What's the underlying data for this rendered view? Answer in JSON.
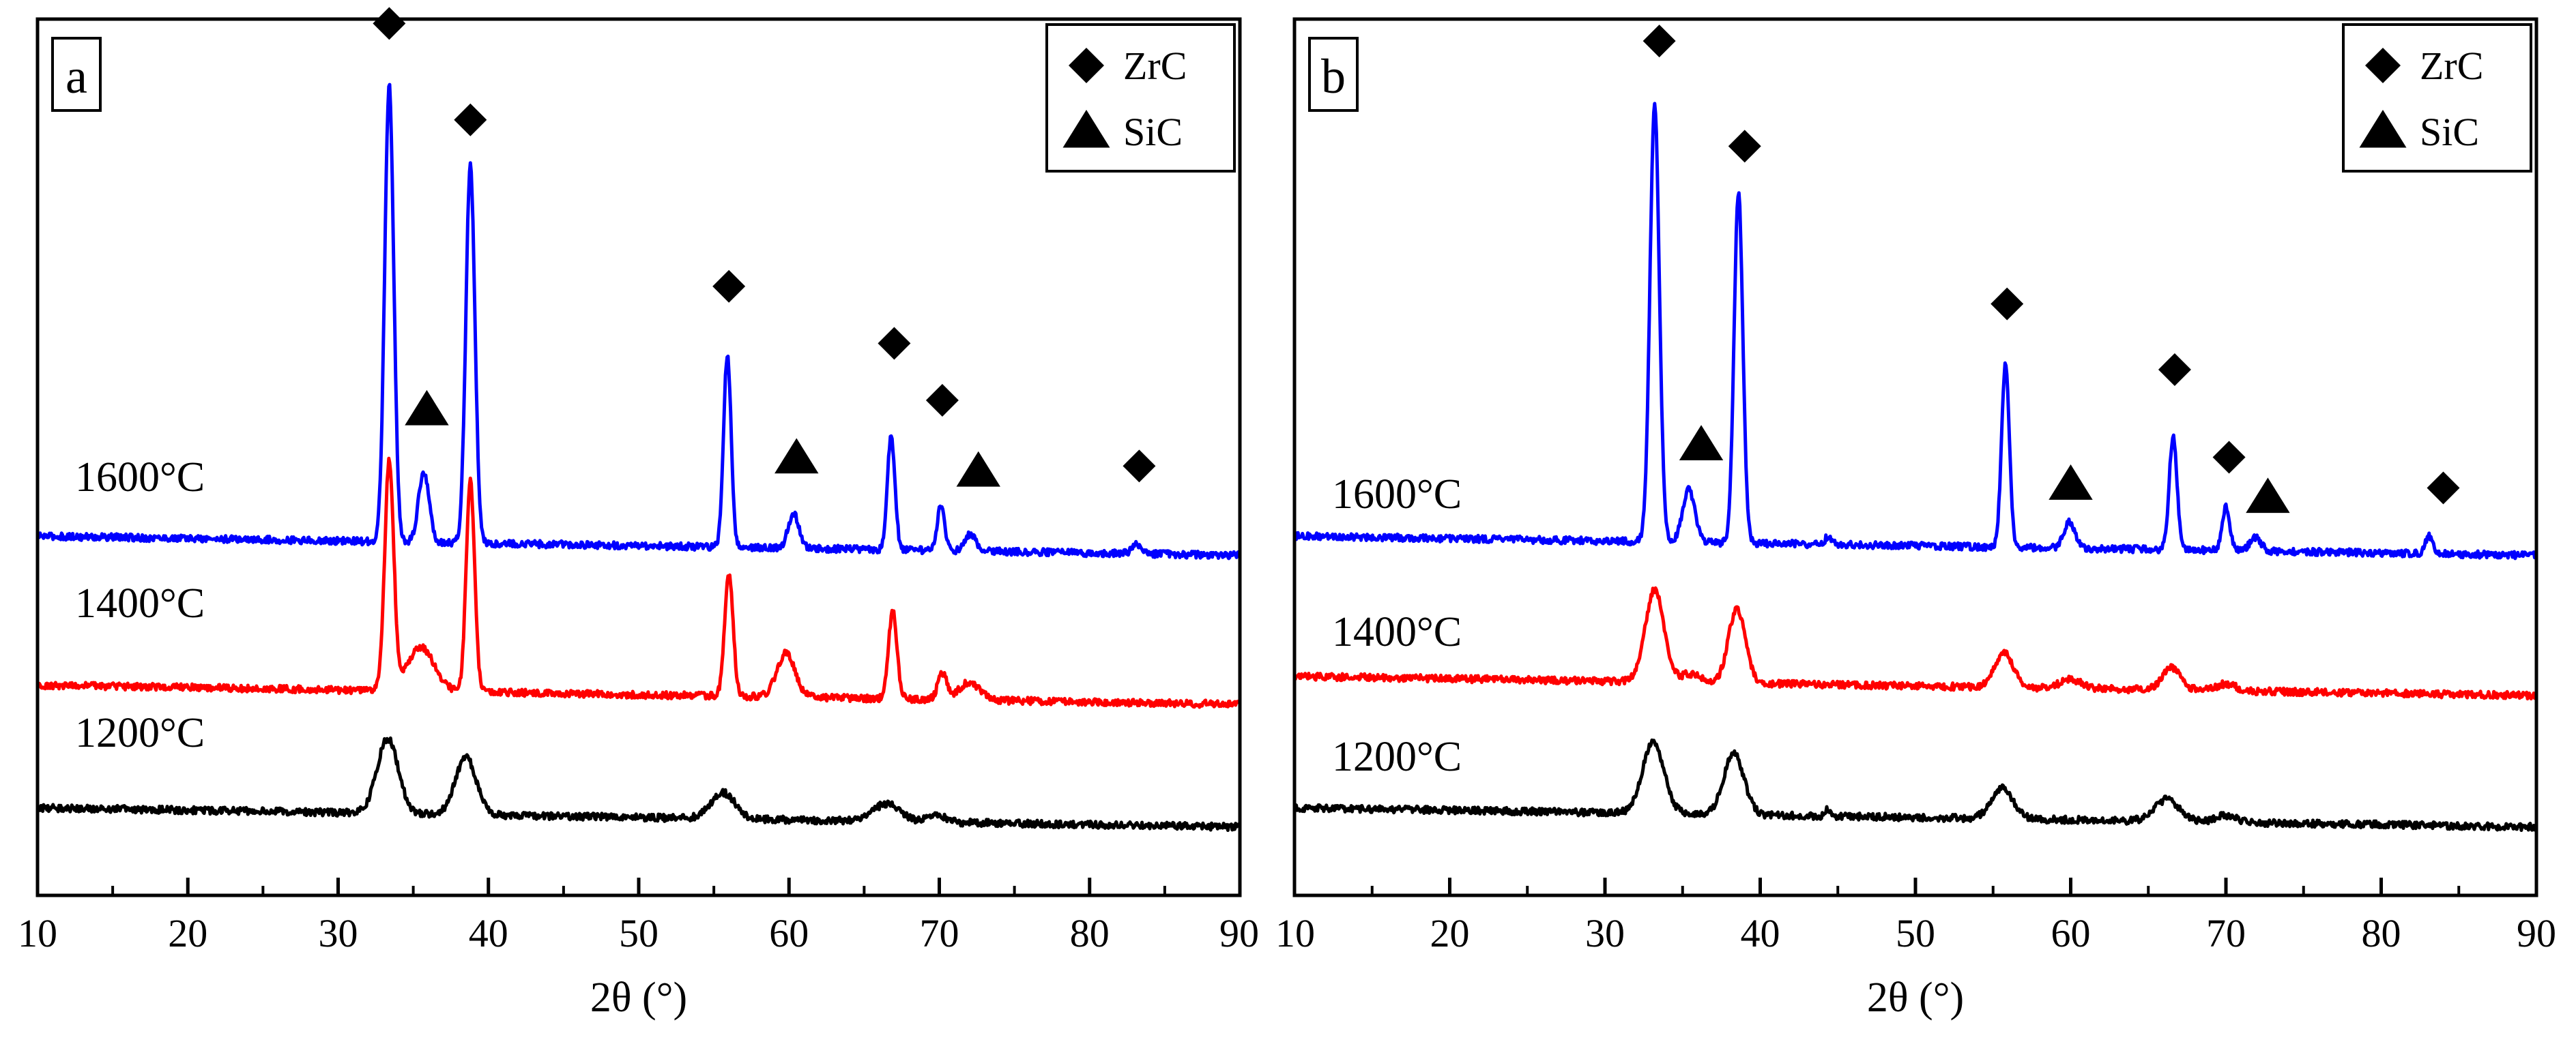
{
  "chart_data": [
    {
      "type": "line",
      "panel_label": "a",
      "title": "",
      "xlabel": "2θ (°)",
      "ylabel": "",
      "xlim": [
        10,
        90
      ],
      "xticks": [
        10,
        20,
        30,
        40,
        50,
        60,
        70,
        80,
        90
      ],
      "yticks": [],
      "legend": {
        "position": "top-right",
        "entries": [
          {
            "marker": "diamond",
            "label": "ZrC"
          },
          {
            "marker": "triangle",
            "label": "SiC"
          }
        ]
      },
      "series": [
        {
          "name": "1600°C",
          "label": "1600°C",
          "color": "#0000ff",
          "baseline": 0.41,
          "peaks": [
            {
              "x": 33.4,
              "h": 0.52,
              "w": 0.3
            },
            {
              "x": 35.7,
              "h": 0.08,
              "w": 0.35
            },
            {
              "x": 38.8,
              "h": 0.43,
              "w": 0.3
            },
            {
              "x": 55.9,
              "h": 0.22,
              "w": 0.25
            },
            {
              "x": 60.3,
              "h": 0.04,
              "w": 0.35
            },
            {
              "x": 66.8,
              "h": 0.13,
              "w": 0.25
            },
            {
              "x": 70.1,
              "h": 0.05,
              "w": 0.25
            },
            {
              "x": 72.1,
              "h": 0.02,
              "w": 0.35
            },
            {
              "x": 83.1,
              "h": 0.01,
              "w": 0.3
            }
          ]
        },
        {
          "name": "1400°C",
          "label": "1400°C",
          "color": "#ff0000",
          "baseline": 0.24,
          "peaks": [
            {
              "x": 33.4,
              "h": 0.26,
              "w": 0.3
            },
            {
              "x": 35.5,
              "h": 0.05,
              "w": 0.9
            },
            {
              "x": 38.8,
              "h": 0.24,
              "w": 0.28
            },
            {
              "x": 56.0,
              "h": 0.14,
              "w": 0.28
            },
            {
              "x": 59.8,
              "h": 0.05,
              "w": 0.6
            },
            {
              "x": 66.9,
              "h": 0.1,
              "w": 0.28
            },
            {
              "x": 70.2,
              "h": 0.03,
              "w": 0.3
            },
            {
              "x": 72.0,
              "h": 0.02,
              "w": 0.7
            }
          ]
        },
        {
          "name": "1200°C",
          "label": "1200°C",
          "color": "#000000",
          "baseline": 0.1,
          "peaks": [
            {
              "x": 33.3,
              "h": 0.085,
              "w": 0.7
            },
            {
              "x": 38.5,
              "h": 0.065,
              "w": 0.7
            },
            {
              "x": 55.6,
              "h": 0.03,
              "w": 0.8
            },
            {
              "x": 66.5,
              "h": 0.02,
              "w": 0.9
            },
            {
              "x": 69.9,
              "h": 0.008,
              "w": 0.6
            }
          ]
        }
      ],
      "annotations": [
        {
          "marker": "diamond",
          "x": 33.4,
          "y": 0.995
        },
        {
          "marker": "diamond",
          "x": 38.8,
          "y": 0.885
        },
        {
          "marker": "diamond",
          "x": 56.0,
          "y": 0.695
        },
        {
          "marker": "diamond",
          "x": 67.0,
          "y": 0.63
        },
        {
          "marker": "diamond",
          "x": 70.2,
          "y": 0.565
        },
        {
          "marker": "diamond",
          "x": 83.3,
          "y": 0.49
        },
        {
          "marker": "triangle",
          "x": 35.9,
          "y": 0.555
        },
        {
          "marker": "triangle",
          "x": 60.5,
          "y": 0.5
        },
        {
          "marker": "triangle",
          "x": 72.6,
          "y": 0.485
        }
      ]
    },
    {
      "type": "line",
      "panel_label": "b",
      "title": "",
      "xlabel": "2θ (°)",
      "ylabel": "",
      "xlim": [
        10,
        90
      ],
      "xticks": [
        10,
        20,
        30,
        40,
        50,
        60,
        70,
        80,
        90
      ],
      "yticks": [],
      "legend": {
        "position": "top-right",
        "entries": [
          {
            "marker": "diamond",
            "label": "ZrC"
          },
          {
            "marker": "triangle",
            "label": "SiC"
          }
        ]
      },
      "series": [
        {
          "name": "1600°C",
          "label": "1600°C",
          "color": "#0000ff",
          "baseline": 0.41,
          "peaks": [
            {
              "x": 33.2,
              "h": 0.5,
              "w": 0.3
            },
            {
              "x": 35.4,
              "h": 0.06,
              "w": 0.4
            },
            {
              "x": 38.6,
              "h": 0.4,
              "w": 0.28
            },
            {
              "x": 44.4,
              "h": 0.01,
              "w": 0.2
            },
            {
              "x": 55.8,
              "h": 0.21,
              "w": 0.25
            },
            {
              "x": 59.9,
              "h": 0.03,
              "w": 0.35
            },
            {
              "x": 66.6,
              "h": 0.13,
              "w": 0.25
            },
            {
              "x": 70.0,
              "h": 0.05,
              "w": 0.25
            },
            {
              "x": 71.9,
              "h": 0.015,
              "w": 0.35
            },
            {
              "x": 83.1,
              "h": 0.02,
              "w": 0.25
            }
          ]
        },
        {
          "name": "1400°C",
          "label": "1400°C",
          "color": "#ff0000",
          "baseline": 0.25,
          "peaks": [
            {
              "x": 33.2,
              "h": 0.105,
              "w": 0.6
            },
            {
              "x": 35.5,
              "h": 0.01,
              "w": 0.6
            },
            {
              "x": 38.5,
              "h": 0.085,
              "w": 0.55
            },
            {
              "x": 55.7,
              "h": 0.04,
              "w": 0.6
            },
            {
              "x": 60.0,
              "h": 0.01,
              "w": 0.7
            },
            {
              "x": 66.5,
              "h": 0.025,
              "w": 0.6
            },
            {
              "x": 70.0,
              "h": 0.008,
              "w": 0.6
            }
          ]
        },
        {
          "name": "1200°C",
          "label": "1200°C",
          "color": "#000000",
          "baseline": 0.1,
          "peaks": [
            {
              "x": 33.1,
              "h": 0.08,
              "w": 0.7
            },
            {
              "x": 38.3,
              "h": 0.07,
              "w": 0.65
            },
            {
              "x": 44.4,
              "h": 0.008,
              "w": 0.2
            },
            {
              "x": 55.6,
              "h": 0.035,
              "w": 0.7
            },
            {
              "x": 66.2,
              "h": 0.025,
              "w": 0.8
            },
            {
              "x": 70.0,
              "h": 0.008,
              "w": 0.6
            }
          ]
        }
      ],
      "annotations": [
        {
          "marker": "diamond",
          "x": 33.5,
          "y": 0.975
        },
        {
          "marker": "diamond",
          "x": 39.0,
          "y": 0.855
        },
        {
          "marker": "diamond",
          "x": 55.9,
          "y": 0.675
        },
        {
          "marker": "diamond",
          "x": 66.7,
          "y": 0.6
        },
        {
          "marker": "diamond",
          "x": 70.2,
          "y": 0.5
        },
        {
          "marker": "diamond",
          "x": 84.0,
          "y": 0.465
        },
        {
          "marker": "triangle",
          "x": 36.2,
          "y": 0.515
        },
        {
          "marker": "triangle",
          "x": 60.0,
          "y": 0.47
        },
        {
          "marker": "triangle",
          "x": 72.7,
          "y": 0.455
        }
      ]
    }
  ]
}
